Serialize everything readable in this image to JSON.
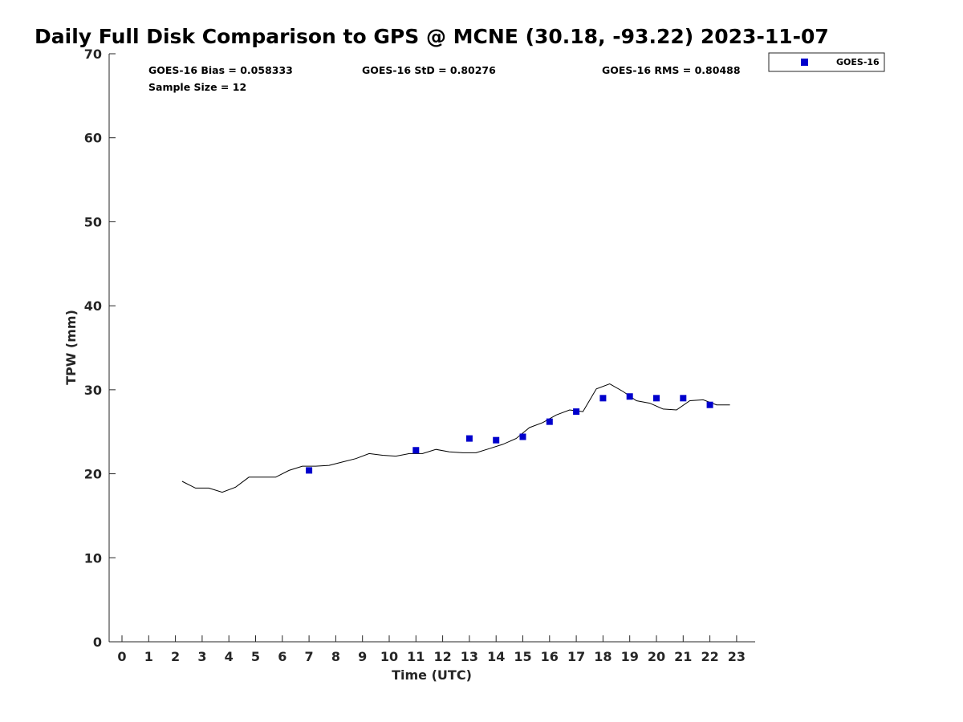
{
  "chart_data": {
    "type": "scatter",
    "title": "Daily Full Disk Comparison to GPS @ MCNE (30.18, -93.22) 2023-11-07",
    "xlabel": "Time (UTC)",
    "ylabel": "TPW (mm)",
    "xlim": [
      -0.5,
      23.75
    ],
    "ylim": [
      0,
      70
    ],
    "xticks": [
      "0",
      "1",
      "2",
      "3",
      "4",
      "5",
      "6",
      "7",
      "8",
      "9",
      "10",
      "11",
      "12",
      "13",
      "14",
      "15",
      "16",
      "17",
      "18",
      "19",
      "20",
      "21",
      "22",
      "23"
    ],
    "yticks": [
      "0",
      "10",
      "20",
      "30",
      "40",
      "50",
      "60",
      "70"
    ],
    "grid": false,
    "legend_position": "outside-top-right",
    "stats": {
      "bias": "GOES-16 Bias = 0.058333",
      "std": "GOES-16 StD = 0.80276",
      "rms": "GOES-16 RMS = 0.80488",
      "sample": "Sample Size = 12"
    },
    "series": [
      {
        "name": "GOES-16",
        "kind": "scatter",
        "marker": "square",
        "color": "#0000cc",
        "x": [
          7,
          11,
          13,
          14,
          15,
          16,
          17,
          18,
          19,
          20,
          21,
          22
        ],
        "y": [
          20.4,
          22.8,
          24.2,
          24.0,
          24.4,
          26.2,
          27.4,
          29.0,
          29.2,
          29.0,
          29.0,
          28.2
        ]
      },
      {
        "kind": "line",
        "color": "#000000",
        "x": [
          2.25,
          2.75,
          3.25,
          3.75,
          4.25,
          4.75,
          5.25,
          5.75,
          6.25,
          6.75,
          7.25,
          7.75,
          8.25,
          8.75,
          9.25,
          9.75,
          10.25,
          10.75,
          11.25,
          11.75,
          12.25,
          12.75,
          13.25,
          13.75,
          14.25,
          14.75,
          15.25,
          15.75,
          16.25,
          16.75,
          17.25,
          17.75,
          18.25,
          18.75,
          19.25,
          19.75,
          20.25,
          20.75,
          21.25,
          21.75,
          22.25,
          22.75
        ],
        "y": [
          19.1,
          18.3,
          18.3,
          17.8,
          18.4,
          19.6,
          19.6,
          19.6,
          20.4,
          20.9,
          20.9,
          21.0,
          21.4,
          21.8,
          22.4,
          22.2,
          22.1,
          22.4,
          22.4,
          22.9,
          22.6,
          22.5,
          22.5,
          23.0,
          23.5,
          24.2,
          25.5,
          26.1,
          27.0,
          27.6,
          27.4,
          30.1,
          30.7,
          29.8,
          28.7,
          28.4,
          27.7,
          27.6,
          28.7,
          28.8,
          28.2,
          28.2
        ]
      }
    ]
  }
}
